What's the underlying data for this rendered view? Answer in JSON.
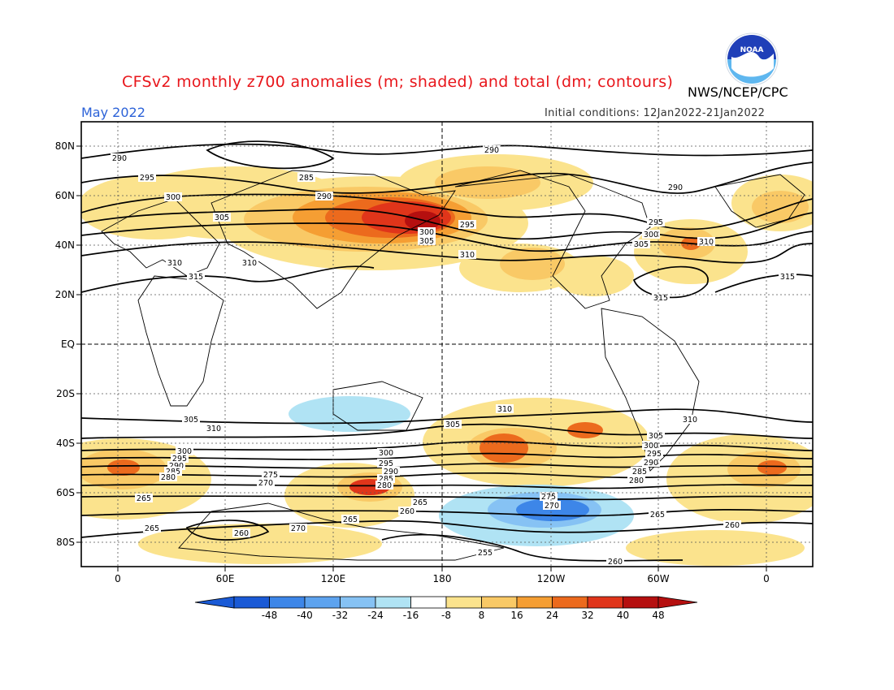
{
  "header": {
    "title": "CFSv2 monthly z700 anomalies (m; shaded) and total (dm; contours)",
    "subtitle": "May 2022",
    "agency": "NWS/NCEP/CPC",
    "initial_conditions": "Initial conditions: 12Jan2022-21Jan2022",
    "logo_text": "NOAA"
  },
  "colors": {
    "title": "#e8161b",
    "subtitle": "#2c62d8",
    "strong_negative": "#1e64dc",
    "weak_negative": "#a8e6f3",
    "weak_positive": "#fbe38d",
    "moderate_positive": "#f7b440",
    "strong_positive": "#e8351b",
    "extreme_positive": "#bf0f0f"
  },
  "axes": {
    "lat_labels": [
      "80N",
      "60N",
      "40N",
      "20N",
      "EQ",
      "20S",
      "40S",
      "60S",
      "80S"
    ],
    "lon_labels": [
      "0",
      "60E",
      "120E",
      "180",
      "120W",
      "60W",
      "0"
    ]
  },
  "contours": [
    {
      "label": "290",
      "value": 290
    },
    {
      "label": "285",
      "value": 285
    },
    {
      "label": "295",
      "value": 295
    },
    {
      "label": "300",
      "value": 300
    },
    {
      "label": "305",
      "value": 305
    },
    {
      "label": "310",
      "value": 310
    },
    {
      "label": "315",
      "value": 315
    },
    {
      "label": "275",
      "value": 275
    },
    {
      "label": "270",
      "value": 270
    },
    {
      "label": "265",
      "value": 265
    },
    {
      "label": "260",
      "value": 260
    },
    {
      "label": "255",
      "value": 255
    },
    {
      "label": "280",
      "value": 280
    }
  ],
  "colorbar": {
    "levels": [
      "-48",
      "-40",
      "-32",
      "-24",
      "-16",
      "-8",
      "8",
      "16",
      "24",
      "32",
      "40",
      "48"
    ],
    "colors": [
      "#1a5ad6",
      "#3d86e8",
      "#5da3ef",
      "#86c2f4",
      "#b0e3f4",
      "#ffffff",
      "#fbe38d",
      "#f9c966",
      "#f59e33",
      "#ec6a1d",
      "#e0351a",
      "#b50f0f"
    ],
    "arrow_left": "#1a5ad6",
    "arrow_right": "#b50f0f"
  }
}
